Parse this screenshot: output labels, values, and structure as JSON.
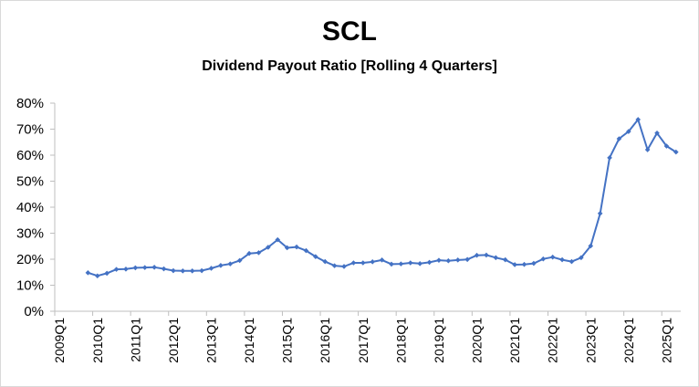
{
  "chart_data": {
    "type": "line",
    "title": "SCL",
    "subtitle": "Dividend Payout Ratio [Rolling 4 Quarters]",
    "xlabel": "",
    "ylabel": "",
    "ylim": [
      0,
      80
    ],
    "yticks": [
      "0%",
      "10%",
      "20%",
      "30%",
      "40%",
      "50%",
      "60%",
      "70%",
      "80%"
    ],
    "xtick_labels": [
      "2009Q1",
      "2010Q1",
      "2011Q1",
      "2012Q1",
      "2013Q1",
      "2014Q1",
      "2015Q1",
      "2016Q1",
      "2017Q1",
      "2018Q1",
      "2019Q1",
      "2020Q1",
      "2021Q1",
      "2022Q1",
      "2023Q1",
      "2024Q1",
      "2025Q1"
    ],
    "grid": false,
    "legend": "none",
    "line_color": "#4472c4",
    "series": [
      {
        "x": [
          "2009Q4",
          "2010Q1",
          "2010Q2",
          "2010Q3",
          "2010Q4",
          "2011Q1",
          "2011Q2",
          "2011Q3",
          "2011Q4",
          "2012Q1",
          "2012Q2",
          "2012Q3",
          "2012Q4",
          "2013Q1",
          "2013Q2",
          "2013Q3",
          "2013Q4",
          "2014Q1",
          "2014Q2",
          "2014Q3",
          "2014Q4",
          "2015Q1",
          "2015Q2",
          "2015Q3",
          "2015Q4",
          "2016Q1",
          "2016Q2",
          "2016Q3",
          "2016Q4",
          "2017Q1",
          "2017Q2",
          "2017Q3",
          "2017Q4",
          "2018Q1",
          "2018Q2",
          "2018Q3",
          "2018Q4",
          "2019Q1",
          "2019Q2",
          "2019Q3",
          "2019Q4",
          "2020Q1",
          "2020Q2",
          "2020Q3",
          "2020Q4",
          "2021Q1",
          "2021Q2",
          "2021Q3",
          "2021Q4",
          "2022Q1",
          "2022Q2",
          "2022Q3",
          "2022Q4",
          "2023Q1",
          "2023Q2",
          "2023Q3",
          "2023Q4",
          "2024Q1",
          "2024Q2",
          "2024Q3",
          "2024Q4",
          "2025Q1",
          "2025Q2"
        ],
        "values": [
          14.8,
          13.6,
          14.6,
          16.1,
          16.2,
          16.7,
          16.8,
          16.9,
          16.3,
          15.6,
          15.5,
          15.5,
          15.6,
          16.5,
          17.6,
          18.2,
          19.5,
          22.2,
          22.5,
          24.6,
          27.5,
          24.4,
          24.7,
          23.3,
          21.0,
          19.1,
          17.5,
          17.2,
          18.6,
          18.6,
          19.0,
          19.7,
          18.1,
          18.2,
          18.6,
          18.3,
          18.8,
          19.6,
          19.4,
          19.7,
          19.9,
          21.5,
          21.6,
          20.6,
          19.8,
          17.9,
          18.0,
          18.4,
          20.1,
          20.8,
          19.8,
          19.1,
          20.6,
          25.1,
          37.6,
          59.0,
          66.3,
          69.1,
          73.7,
          62.1,
          68.5,
          63.5,
          61.2
        ]
      }
    ]
  }
}
